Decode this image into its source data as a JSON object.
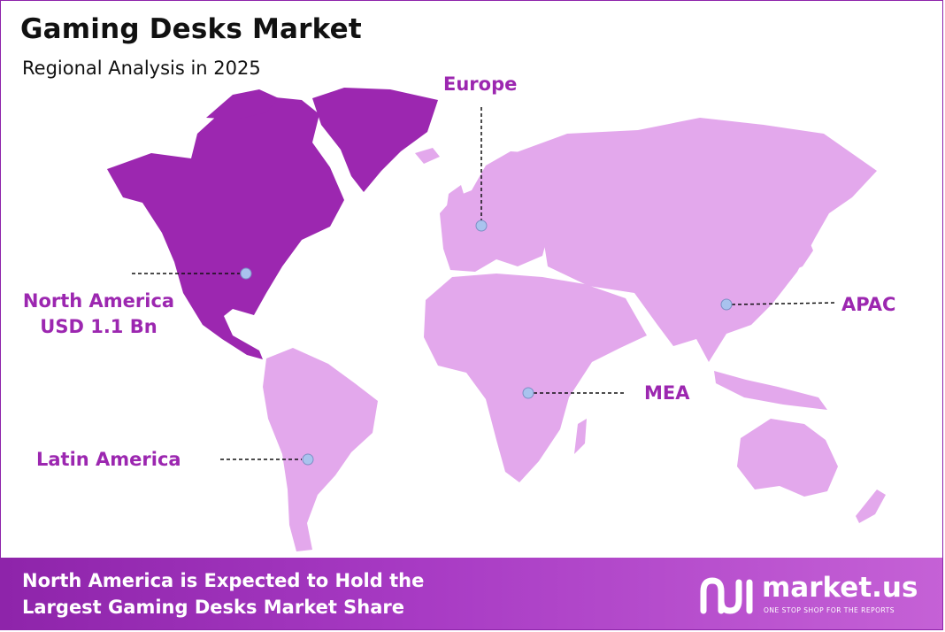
{
  "header": {
    "title": "Gaming Desks Market",
    "subtitle": "Regional Analysis in 2025"
  },
  "colors": {
    "highlight_region": "#9c27b0",
    "other_regions": "#e3a8ec",
    "label_text": "#9c27b0",
    "marker": "#a9c3ee",
    "footer_start": "#8e24aa",
    "footer_end": "#c561d6"
  },
  "regions": [
    {
      "key": "north_america",
      "name": "North America",
      "value": "USD 1.1 Bn",
      "highlighted": true
    },
    {
      "key": "europe",
      "name": "Europe",
      "highlighted": false
    },
    {
      "key": "apac",
      "name": "APAC",
      "highlighted": false
    },
    {
      "key": "mea",
      "name": "MEA",
      "highlighted": false
    },
    {
      "key": "latin_america",
      "name": "Latin America",
      "highlighted": false
    }
  ],
  "footer": {
    "line1": "North America is Expected to Hold the",
    "line2": "Largest Gaming Desks Market Share"
  },
  "brand": {
    "name": "market.us",
    "tagline": "ONE STOP SHOP FOR THE REPORTS",
    "logo_icon": "market-us-logo-icon"
  }
}
